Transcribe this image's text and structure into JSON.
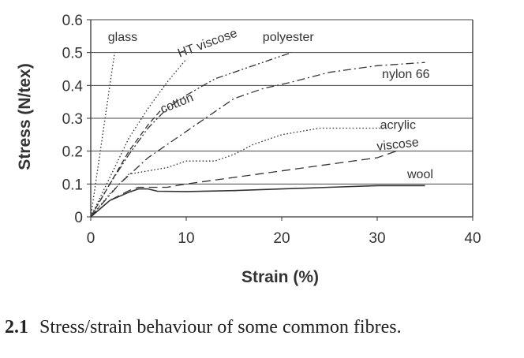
{
  "chart_data": {
    "type": "line",
    "xlabel": "Strain (%)",
    "ylabel": "Stress (N/tex)",
    "xlim": [
      0,
      40
    ],
    "ylim": [
      0,
      0.6
    ],
    "x_ticks": [
      0,
      10,
      20,
      30,
      40
    ],
    "y_ticks": [
      0,
      0.1,
      0.2,
      0.3,
      0.4,
      0.5,
      0.6
    ],
    "y_tick_labels": [
      "0",
      "0.1",
      "0.2",
      "0.3",
      "0.4",
      "0.5",
      "0.6"
    ],
    "grid": "horizontal",
    "series": [
      {
        "name": "glass",
        "style": "dotted",
        "x": [
          0,
          1,
          2,
          2.5
        ],
        "y": [
          0,
          0.2,
          0.4,
          0.5
        ]
      },
      {
        "name": "HT viscose",
        "style": "dotted",
        "x": [
          0,
          2,
          4,
          6,
          8,
          10
        ],
        "y": [
          0,
          0.12,
          0.24,
          0.33,
          0.41,
          0.48
        ]
      },
      {
        "name": "cotton",
        "style": "dashed",
        "x": [
          0,
          2,
          4,
          6,
          7.5
        ],
        "y": [
          0,
          0.1,
          0.2,
          0.28,
          0.33
        ]
      },
      {
        "name": "polyester",
        "style": "dashdotdot",
        "x": [
          0,
          2,
          4,
          6,
          8,
          10,
          13,
          16,
          19,
          21
        ],
        "y": [
          0,
          0.1,
          0.19,
          0.27,
          0.33,
          0.37,
          0.42,
          0.45,
          0.48,
          0.5
        ]
      },
      {
        "name": "nylon 66",
        "style": "dashdot",
        "x": [
          0,
          3,
          6,
          9,
          12,
          15,
          18,
          21,
          25,
          30,
          35
        ],
        "y": [
          0,
          0.1,
          0.18,
          0.24,
          0.3,
          0.36,
          0.39,
          0.41,
          0.44,
          0.46,
          0.47
        ]
      },
      {
        "name": "acrylic",
        "style": "dotted",
        "x": [
          0,
          2,
          4,
          6,
          8,
          10,
          13,
          15,
          17,
          20,
          24,
          28,
          31
        ],
        "y": [
          0,
          0.07,
          0.13,
          0.14,
          0.15,
          0.17,
          0.17,
          0.19,
          0.22,
          0.25,
          0.27,
          0.27,
          0.27
        ]
      },
      {
        "name": "viscose",
        "style": "longdash",
        "x": [
          0,
          2,
          4,
          5,
          6,
          8,
          10,
          15,
          20,
          25,
          30,
          32
        ],
        "y": [
          0,
          0.05,
          0.08,
          0.09,
          0.09,
          0.09,
          0.1,
          0.12,
          0.14,
          0.16,
          0.18,
          0.2
        ]
      },
      {
        "name": "wool",
        "style": "solid",
        "x": [
          0,
          2,
          4,
          5,
          6,
          7,
          10,
          15,
          20,
          25,
          30,
          35
        ],
        "y": [
          0,
          0.05,
          0.075,
          0.085,
          0.085,
          0.078,
          0.077,
          0.08,
          0.085,
          0.09,
          0.095,
          0.095
        ]
      }
    ],
    "caption_number": "2.1",
    "caption": "Stress/strain behaviour of some common fibres."
  }
}
